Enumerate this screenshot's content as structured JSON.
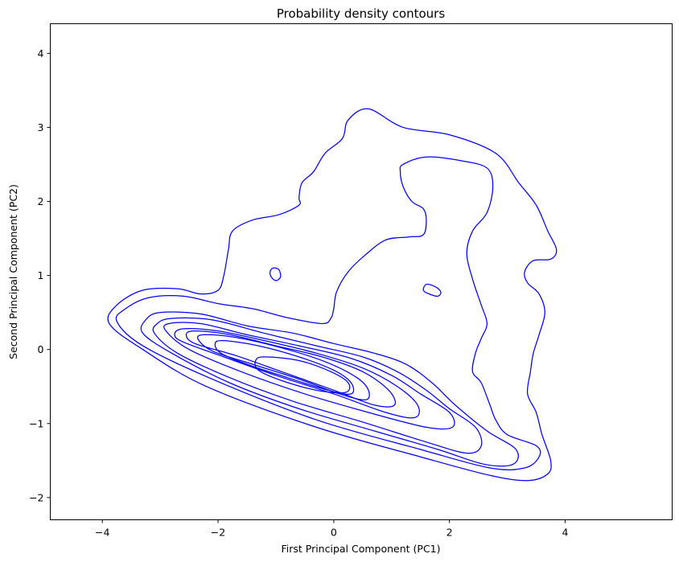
{
  "chart_data": {
    "type": "contour",
    "title": "Probability density contours",
    "xlabel": "First Principal Component (PC1)",
    "ylabel": "Second Principal Component (PC2)",
    "xlim": [
      -4.9,
      5.85
    ],
    "ylim": [
      -2.3,
      4.4
    ],
    "xticks": [
      -4,
      -2,
      0,
      2,
      4
    ],
    "xtick_labels": [
      "−4",
      "−2",
      "0",
      "2",
      "4"
    ],
    "yticks": [
      -2,
      -1,
      0,
      1,
      2,
      3,
      4
    ],
    "ytick_labels": [
      "−2",
      "−1",
      "0",
      "1",
      "2",
      "3",
      "4"
    ],
    "line_color": "#0000ff",
    "grid": false,
    "legend": "none",
    "contours": [
      {
        "level": 1,
        "points": [
          [
            0.6,
            3.25
          ],
          [
            1.2,
            3.0
          ],
          [
            2.0,
            2.9
          ],
          [
            2.8,
            2.65
          ],
          [
            3.2,
            2.25
          ],
          [
            3.5,
            1.95
          ],
          [
            3.7,
            1.6
          ],
          [
            3.85,
            1.35
          ],
          [
            3.75,
            1.22
          ],
          [
            3.45,
            1.2
          ],
          [
            3.3,
            1.05
          ],
          [
            3.35,
            0.9
          ],
          [
            3.55,
            0.75
          ],
          [
            3.65,
            0.5
          ],
          [
            3.55,
            0.2
          ],
          [
            3.45,
            -0.05
          ],
          [
            3.4,
            -0.3
          ],
          [
            3.35,
            -0.6
          ],
          [
            3.5,
            -0.85
          ],
          [
            3.6,
            -1.15
          ],
          [
            3.75,
            -1.5
          ],
          [
            3.7,
            -1.68
          ],
          [
            3.35,
            -1.77
          ],
          [
            2.7,
            -1.7
          ],
          [
            1.5,
            -1.45
          ],
          [
            -0.3,
            -1.05
          ],
          [
            -2.2,
            -0.5
          ],
          [
            -3.3,
            0.0
          ],
          [
            -3.88,
            0.35
          ],
          [
            -3.75,
            0.6
          ],
          [
            -3.3,
            0.8
          ],
          [
            -2.7,
            0.82
          ],
          [
            -2.3,
            0.75
          ],
          [
            -2.0,
            0.8
          ],
          [
            -1.9,
            1.0
          ],
          [
            -1.82,
            1.35
          ],
          [
            -1.75,
            1.6
          ],
          [
            -1.4,
            1.75
          ],
          [
            -0.95,
            1.82
          ],
          [
            -0.6,
            1.95
          ],
          [
            -0.6,
            2.05
          ],
          [
            -0.55,
            2.25
          ],
          [
            -0.35,
            2.4
          ],
          [
            -0.15,
            2.65
          ],
          [
            0.15,
            2.85
          ],
          [
            0.25,
            3.1
          ],
          [
            0.6,
            3.25
          ]
        ]
      },
      {
        "level": 2,
        "points": [
          [
            1.2,
            2.5
          ],
          [
            1.6,
            2.6
          ],
          [
            2.2,
            2.55
          ],
          [
            2.65,
            2.45
          ],
          [
            2.75,
            2.2
          ],
          [
            2.65,
            1.85
          ],
          [
            2.4,
            1.6
          ],
          [
            2.3,
            1.3
          ],
          [
            2.4,
            0.95
          ],
          [
            2.55,
            0.6
          ],
          [
            2.65,
            0.35
          ],
          [
            2.55,
            0.15
          ],
          [
            2.45,
            -0.05
          ],
          [
            2.4,
            -0.3
          ],
          [
            2.55,
            -0.45
          ],
          [
            2.7,
            -0.75
          ],
          [
            2.8,
            -0.95
          ],
          [
            3.0,
            -1.15
          ],
          [
            3.5,
            -1.3
          ],
          [
            3.55,
            -1.45
          ],
          [
            3.3,
            -1.6
          ],
          [
            2.7,
            -1.6
          ],
          [
            1.5,
            -1.35
          ],
          [
            -0.3,
            -0.95
          ],
          [
            -2.1,
            -0.4
          ],
          [
            -3.3,
            0.05
          ],
          [
            -3.75,
            0.38
          ],
          [
            -3.6,
            0.55
          ],
          [
            -3.2,
            0.7
          ],
          [
            -2.6,
            0.72
          ],
          [
            -2.0,
            0.62
          ],
          [
            -1.4,
            0.55
          ],
          [
            -0.8,
            0.43
          ],
          [
            -0.2,
            0.35
          ],
          [
            -0.05,
            0.42
          ],
          [
            0.0,
            0.55
          ],
          [
            0.05,
            0.78
          ],
          [
            0.25,
            1.05
          ],
          [
            0.55,
            1.28
          ],
          [
            0.9,
            1.48
          ],
          [
            1.3,
            1.52
          ],
          [
            1.55,
            1.55
          ],
          [
            1.6,
            1.75
          ],
          [
            1.55,
            1.9
          ],
          [
            1.35,
            2.0
          ],
          [
            1.2,
            2.2
          ],
          [
            1.15,
            2.4
          ],
          [
            1.2,
            2.5
          ]
        ]
      },
      {
        "level": 3,
        "points": [
          [
            -3.3,
            0.22
          ],
          [
            -3.25,
            0.4
          ],
          [
            -3.0,
            0.5
          ],
          [
            -2.3,
            0.48
          ],
          [
            -1.5,
            0.32
          ],
          [
            -0.7,
            0.22
          ],
          [
            0.0,
            0.08
          ],
          [
            0.7,
            -0.05
          ],
          [
            1.25,
            -0.2
          ],
          [
            1.7,
            -0.45
          ],
          [
            2.1,
            -0.75
          ],
          [
            2.65,
            -1.1
          ],
          [
            3.15,
            -1.35
          ],
          [
            3.1,
            -1.55
          ],
          [
            2.6,
            -1.55
          ],
          [
            1.8,
            -1.35
          ],
          [
            0.7,
            -1.1
          ],
          [
            -0.6,
            -0.8
          ],
          [
            -1.8,
            -0.45
          ],
          [
            -2.8,
            -0.05
          ],
          [
            -3.3,
            0.22
          ]
        ]
      },
      {
        "level": 4,
        "points": [
          [
            -3.1,
            0.22
          ],
          [
            -3.05,
            0.35
          ],
          [
            -2.8,
            0.42
          ],
          [
            -2.1,
            0.4
          ],
          [
            -1.2,
            0.22
          ],
          [
            -0.3,
            0.05
          ],
          [
            0.5,
            -0.1
          ],
          [
            1.1,
            -0.3
          ],
          [
            1.6,
            -0.55
          ],
          [
            2.0,
            -0.8
          ],
          [
            2.45,
            -1.05
          ],
          [
            2.55,
            -1.3
          ],
          [
            2.3,
            -1.4
          ],
          [
            1.6,
            -1.25
          ],
          [
            0.5,
            -0.98
          ],
          [
            -0.7,
            -0.7
          ],
          [
            -1.8,
            -0.38
          ],
          [
            -2.7,
            -0.05
          ],
          [
            -3.1,
            0.22
          ]
        ]
      },
      {
        "level": 5,
        "points": [
          [
            -2.9,
            0.25
          ],
          [
            -2.85,
            0.35
          ],
          [
            -2.3,
            0.35
          ],
          [
            -1.5,
            0.2
          ],
          [
            -0.6,
            0.05
          ],
          [
            0.3,
            -0.12
          ],
          [
            1.0,
            -0.35
          ],
          [
            1.5,
            -0.6
          ],
          [
            2.0,
            -0.85
          ],
          [
            2.05,
            -1.05
          ],
          [
            1.6,
            -1.05
          ],
          [
            0.6,
            -0.85
          ],
          [
            -0.5,
            -0.6
          ],
          [
            -1.6,
            -0.3
          ],
          [
            -2.5,
            0.0
          ],
          [
            -2.9,
            0.25
          ]
        ]
      },
      {
        "level": 6,
        "points": [
          [
            -2.75,
            0.2
          ],
          [
            -2.6,
            0.28
          ],
          [
            -2.0,
            0.25
          ],
          [
            -1.2,
            0.12
          ],
          [
            -0.3,
            -0.05
          ],
          [
            0.5,
            -0.25
          ],
          [
            1.1,
            -0.5
          ],
          [
            1.45,
            -0.75
          ],
          [
            1.4,
            -0.92
          ],
          [
            0.9,
            -0.85
          ],
          [
            0.0,
            -0.6
          ],
          [
            -1.0,
            -0.35
          ],
          [
            -1.9,
            -0.1
          ],
          [
            -2.6,
            0.1
          ],
          [
            -2.75,
            0.2
          ]
        ]
      },
      {
        "level": 7,
        "points": [
          [
            -2.55,
            0.2
          ],
          [
            -2.4,
            0.25
          ],
          [
            -1.8,
            0.2
          ],
          [
            -1.0,
            0.05
          ],
          [
            -0.2,
            -0.1
          ],
          [
            0.5,
            -0.3
          ],
          [
            0.95,
            -0.55
          ],
          [
            1.05,
            -0.75
          ],
          [
            0.7,
            -0.75
          ],
          [
            0.0,
            -0.55
          ],
          [
            -0.9,
            -0.3
          ],
          [
            -1.7,
            -0.08
          ],
          [
            -2.4,
            0.08
          ],
          [
            -2.55,
            0.2
          ]
        ]
      },
      {
        "level": 8,
        "points": [
          [
            -2.35,
            0.15
          ],
          [
            -2.2,
            0.2
          ],
          [
            -1.6,
            0.15
          ],
          [
            -0.8,
            0.0
          ],
          [
            -0.1,
            -0.18
          ],
          [
            0.4,
            -0.38
          ],
          [
            0.6,
            -0.55
          ],
          [
            0.55,
            -0.68
          ],
          [
            0.1,
            -0.6
          ],
          [
            -0.6,
            -0.4
          ],
          [
            -1.4,
            -0.2
          ],
          [
            -2.1,
            -0.02
          ],
          [
            -2.35,
            0.15
          ]
        ]
      },
      {
        "level": 9,
        "points": [
          [
            -2.05,
            0.08
          ],
          [
            -1.9,
            0.12
          ],
          [
            -1.3,
            0.05
          ],
          [
            -0.6,
            -0.1
          ],
          [
            0.0,
            -0.28
          ],
          [
            0.3,
            -0.45
          ],
          [
            0.3,
            -0.6
          ],
          [
            -0.1,
            -0.55
          ],
          [
            -0.8,
            -0.38
          ],
          [
            -1.5,
            -0.2
          ],
          [
            -1.95,
            -0.05
          ],
          [
            -2.05,
            0.08
          ]
        ]
      },
      {
        "level": 10,
        "points": [
          [
            -1.35,
            -0.15
          ],
          [
            -1.2,
            -0.1
          ],
          [
            -0.6,
            -0.15
          ],
          [
            -0.05,
            -0.3
          ],
          [
            0.25,
            -0.45
          ],
          [
            0.2,
            -0.58
          ],
          [
            -0.3,
            -0.55
          ],
          [
            -0.9,
            -0.42
          ],
          [
            -1.3,
            -0.28
          ],
          [
            -1.35,
            -0.15
          ]
        ]
      },
      {
        "level": 11,
        "points": [
          [
            -1.05,
            1.1
          ],
          [
            -0.95,
            1.08
          ],
          [
            -0.92,
            0.98
          ],
          [
            -1.0,
            0.93
          ],
          [
            -1.08,
            0.98
          ],
          [
            -1.1,
            1.05
          ],
          [
            -1.05,
            1.1
          ]
        ]
      },
      {
        "level": 12,
        "points": [
          [
            1.6,
            0.88
          ],
          [
            1.75,
            0.85
          ],
          [
            1.85,
            0.78
          ],
          [
            1.8,
            0.72
          ],
          [
            1.65,
            0.75
          ],
          [
            1.55,
            0.8
          ],
          [
            1.6,
            0.88
          ]
        ]
      }
    ]
  }
}
